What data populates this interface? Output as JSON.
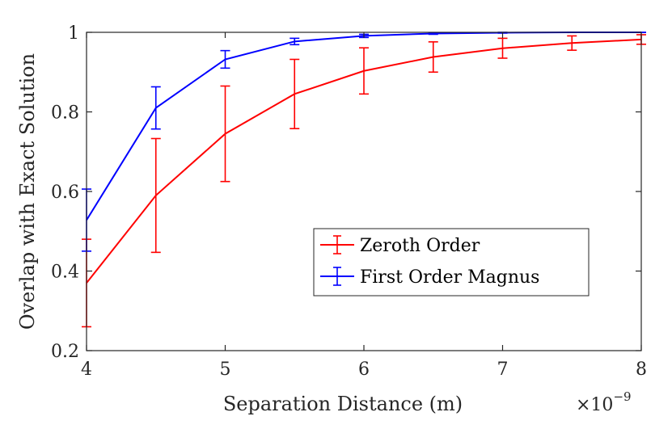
{
  "chart_data": {
    "type": "line",
    "xlabel": "Separation Distance (m)",
    "ylabel": "Overlap with Exact Solution",
    "x_exponent_label": "×10",
    "x_exponent_power": "−9",
    "xlim": [
      4,
      8
    ],
    "ylim": [
      0.2,
      1.0
    ],
    "xticks": [
      4,
      5,
      6,
      7,
      8
    ],
    "xtick_labels": [
      "4",
      "5",
      "6",
      "7",
      "8"
    ],
    "yticks": [
      0.2,
      0.4,
      0.6,
      0.8,
      1.0
    ],
    "ytick_labels": [
      "0.2",
      "0.4",
      "0.6",
      "0.8",
      "1"
    ],
    "grid": false,
    "legend_position": "lower-right",
    "x": [
      4.0,
      4.5,
      5.0,
      5.5,
      6.0,
      6.5,
      7.0,
      7.5,
      8.0
    ],
    "series": [
      {
        "name": "Zeroth Order",
        "color": "#ff0000",
        "values": [
          0.37,
          0.59,
          0.745,
          0.845,
          0.903,
          0.938,
          0.96,
          0.973,
          0.982
        ],
        "errors": [
          0.11,
          0.143,
          0.12,
          0.087,
          0.058,
          0.038,
          0.025,
          0.018,
          0.012
        ]
      },
      {
        "name": "First Order Magnus",
        "color": "#0000ff",
        "values": [
          0.528,
          0.81,
          0.932,
          0.977,
          0.991,
          0.997,
          0.999,
          1.0,
          1.0
        ],
        "errors": [
          0.078,
          0.053,
          0.022,
          0.008,
          0.004,
          0.002,
          0.001,
          0.0005,
          0.0003
        ]
      }
    ]
  }
}
